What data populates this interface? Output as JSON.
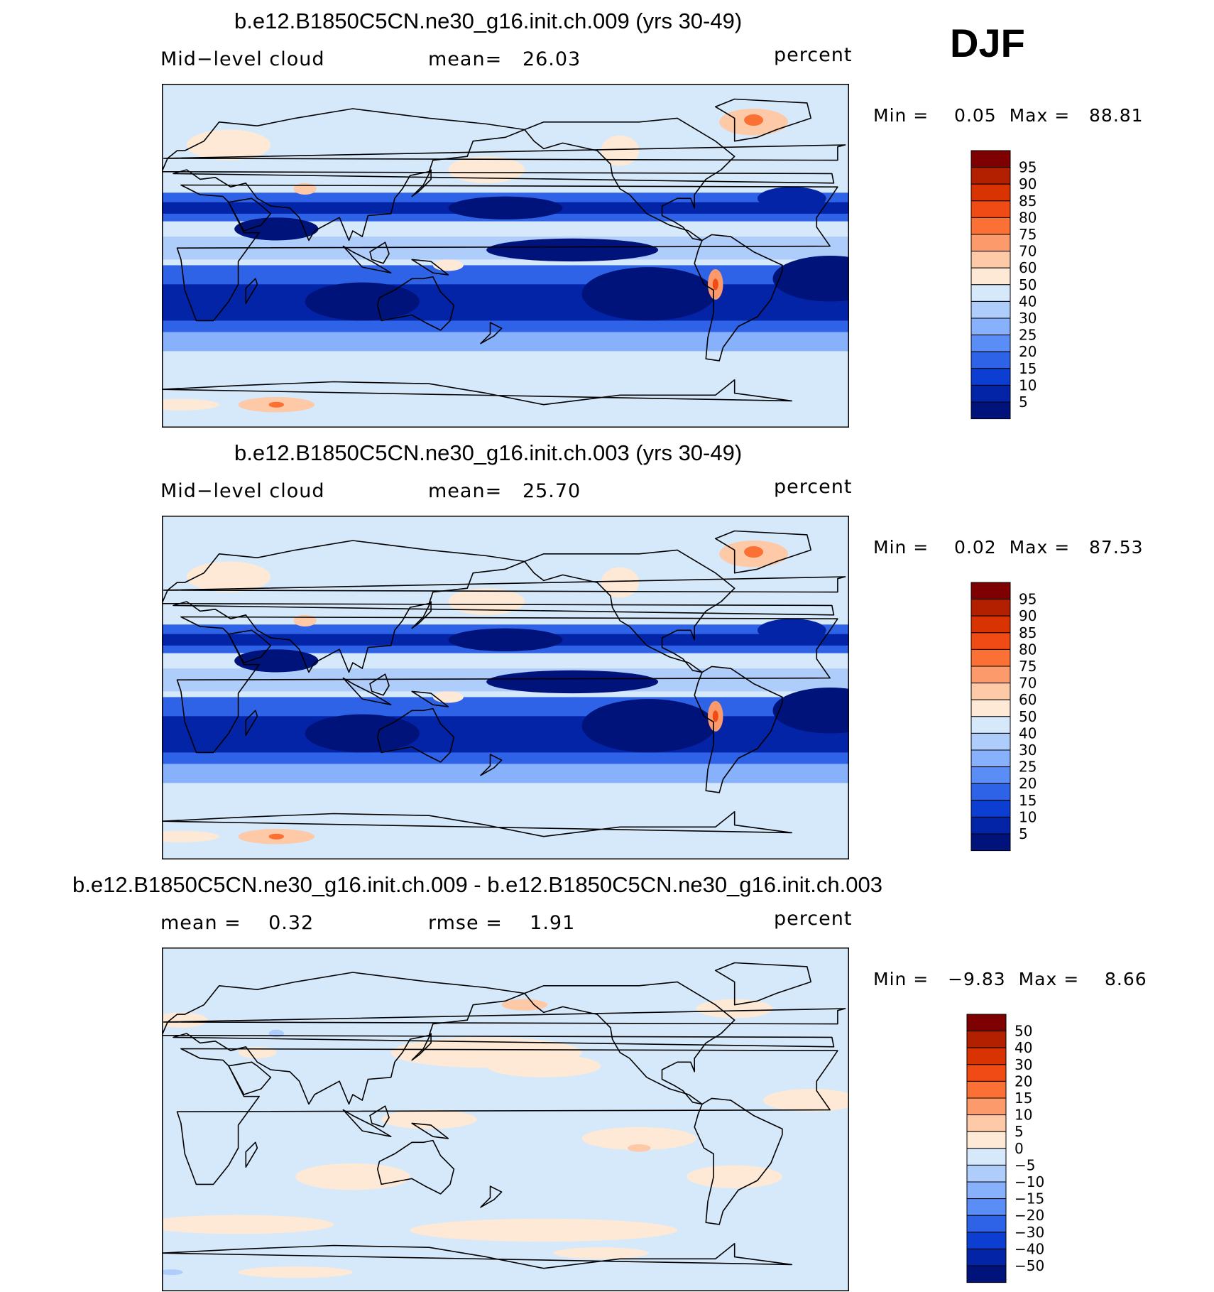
{
  "season": "DJF",
  "panels": [
    {
      "title": "b.e12.B1850C5CN.ne30_g16.init.ch.009 (yrs 30-49)",
      "left_label": "Mid−level cloud",
      "center_label": "mean=   26.03",
      "units": "percent",
      "minmax": "Min =    0.05  Max =   88.81",
      "colorbar": {
        "labels": [
          "95",
          "90",
          "85",
          "80",
          "75",
          "70",
          "60",
          "50",
          "40",
          "30",
          "25",
          "20",
          "15",
          "10",
          "5"
        ],
        "colors": [
          "#7f0000",
          "#b22000",
          "#d83300",
          "#f04a15",
          "#fb7035",
          "#fd9a6b",
          "#fdc9a6",
          "#fde9d5",
          "#d6e9fb",
          "#afcdfb",
          "#88b1fb",
          "#5a8df6",
          "#2e63e8",
          "#0b3ed1",
          "#0424a8",
          "#00137a"
        ]
      },
      "style": "field"
    },
    {
      "title": "b.e12.B1850C5CN.ne30_g16.init.ch.003 (yrs 30-49)",
      "left_label": "Mid−level cloud",
      "center_label": "mean=   25.70",
      "units": "percent",
      "minmax": "Min =    0.02  Max =   87.53",
      "colorbar": {
        "labels": [
          "95",
          "90",
          "85",
          "80",
          "75",
          "70",
          "60",
          "50",
          "40",
          "30",
          "25",
          "20",
          "15",
          "10",
          "5"
        ],
        "colors": [
          "#7f0000",
          "#b22000",
          "#d83300",
          "#f04a15",
          "#fb7035",
          "#fd9a6b",
          "#fdc9a6",
          "#fde9d5",
          "#d6e9fb",
          "#afcdfb",
          "#88b1fb",
          "#5a8df6",
          "#2e63e8",
          "#0b3ed1",
          "#0424a8",
          "#00137a"
        ]
      },
      "style": "field"
    },
    {
      "title": "b.e12.B1850C5CN.ne30_g16.init.ch.009 - b.e12.B1850C5CN.ne30_g16.init.ch.003",
      "left_label": "mean =    0.32",
      "center_label": "rmse =    1.91",
      "units": "percent",
      "minmax": "Min =   −9.83  Max =    8.66",
      "colorbar": {
        "labels": [
          "50",
          "40",
          "30",
          "20",
          "15",
          "10",
          "5",
          "0",
          "−5",
          "−10",
          "−15",
          "−20",
          "−30",
          "−40",
          "−50"
        ],
        "colors": [
          "#7f0000",
          "#b22000",
          "#d83300",
          "#f04a15",
          "#fb7035",
          "#fd9a6b",
          "#fdc9a6",
          "#fde9d5",
          "#d6e9fb",
          "#afcdfb",
          "#88b1fb",
          "#5a8df6",
          "#2e63e8",
          "#0b3ed1",
          "#0424a8",
          "#00137a"
        ]
      },
      "style": "diff"
    }
  ],
  "chart_data": [
    {
      "type": "heatmap",
      "title": "b.e12.B1850C5CN.ne30_g16.init.ch.009 (yrs 30-49)",
      "variable": "Mid−level cloud",
      "units": "percent",
      "mean": 26.03,
      "min": 0.05,
      "max": 88.81,
      "contour_levels": [
        5,
        10,
        15,
        20,
        25,
        30,
        40,
        50,
        60,
        70,
        75,
        80,
        85,
        90,
        95
      ]
    },
    {
      "type": "heatmap",
      "title": "b.e12.B1850C5CN.ne30_g16.init.ch.003 (yrs 30-49)",
      "variable": "Mid−level cloud",
      "units": "percent",
      "mean": 25.7,
      "min": 0.02,
      "max": 87.53,
      "contour_levels": [
        5,
        10,
        15,
        20,
        25,
        30,
        40,
        50,
        60,
        70,
        75,
        80,
        85,
        90,
        95
      ]
    },
    {
      "type": "heatmap",
      "title": "b.e12.B1850C5CN.ne30_g16.init.ch.009 - b.e12.B1850C5CN.ne30_g16.init.ch.003",
      "units": "percent",
      "mean": 0.32,
      "rmse": 1.91,
      "min": -9.83,
      "max": 8.66,
      "contour_levels": [
        -50,
        -40,
        -30,
        -20,
        -15,
        -10,
        -5,
        0,
        5,
        10,
        15,
        20,
        30,
        40,
        50
      ]
    }
  ]
}
